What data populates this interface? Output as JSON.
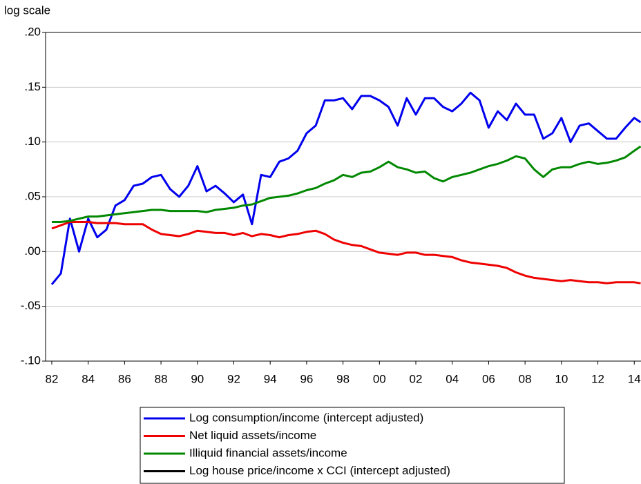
{
  "chart_data": {
    "type": "line",
    "y_axis_label": "log scale",
    "x": [
      1982.0,
      1982.5,
      1983.0,
      1983.5,
      1984.0,
      1984.5,
      1985.0,
      1985.5,
      1986.0,
      1986.5,
      1987.0,
      1987.5,
      1988.0,
      1988.5,
      1989.0,
      1989.5,
      1990.0,
      1990.5,
      1991.0,
      1991.5,
      1992.0,
      1992.5,
      1993.0,
      1993.5,
      1994.0,
      1994.5,
      1995.0,
      1995.5,
      1996.0,
      1996.5,
      1997.0,
      1997.5,
      1998.0,
      1998.5,
      1999.0,
      1999.5,
      2000.0,
      2000.5,
      2001.0,
      2001.5,
      2002.0,
      2002.5,
      2003.0,
      2003.5,
      2004.0,
      2004.5,
      2005.0,
      2005.5,
      2006.0,
      2006.5,
      2007.0,
      2007.5,
      2008.0,
      2008.5,
      2009.0,
      2009.5,
      2010.0,
      2010.5,
      2011.0,
      2011.5,
      2012.0,
      2012.5,
      2013.0,
      2013.5,
      2014.0,
      2014.35
    ],
    "series": [
      {
        "name": "Log consumption/income (intercept adjusted)",
        "color": "#0000ee",
        "values": [
          -0.03,
          -0.02,
          0.03,
          0.0,
          0.03,
          0.013,
          0.02,
          0.042,
          0.047,
          0.06,
          0.062,
          0.068,
          0.07,
          0.057,
          0.05,
          0.06,
          0.078,
          0.055,
          0.06,
          0.053,
          0.045,
          0.052,
          0.025,
          0.07,
          0.068,
          0.082,
          0.085,
          0.092,
          0.108,
          0.115,
          0.138,
          0.138,
          0.14,
          0.13,
          0.142,
          0.142,
          0.138,
          0.132,
          0.115,
          0.14,
          0.125,
          0.14,
          0.14,
          0.132,
          0.128,
          0.135,
          0.145,
          0.138,
          0.113,
          0.128,
          0.12,
          0.135,
          0.125,
          0.125,
          0.103,
          0.108,
          0.122,
          0.1,
          0.115,
          0.117,
          0.11,
          0.103,
          0.103,
          0.113,
          0.122,
          0.118
        ]
      },
      {
        "name": "Net liquid assets/income",
        "color": "#ee0000",
        "values": [
          0.021,
          0.024,
          0.027,
          0.027,
          0.027,
          0.026,
          0.026,
          0.026,
          0.025,
          0.025,
          0.025,
          0.02,
          0.016,
          0.015,
          0.014,
          0.016,
          0.019,
          0.018,
          0.017,
          0.017,
          0.015,
          0.017,
          0.014,
          0.016,
          0.015,
          0.013,
          0.015,
          0.016,
          0.018,
          0.019,
          0.016,
          0.011,
          0.008,
          0.006,
          0.005,
          0.002,
          -0.001,
          -0.002,
          -0.003,
          -0.001,
          -0.001,
          -0.003,
          -0.003,
          -0.004,
          -0.005,
          -0.008,
          -0.01,
          -0.011,
          -0.012,
          -0.013,
          -0.015,
          -0.019,
          -0.022,
          -0.024,
          -0.025,
          -0.026,
          -0.027,
          -0.026,
          -0.027,
          -0.028,
          -0.028,
          -0.029,
          -0.028,
          -0.028,
          -0.028,
          -0.029
        ]
      },
      {
        "name": "Illiquid financial assets/income",
        "color": "#008800",
        "values": [
          0.027,
          0.027,
          0.028,
          0.03,
          0.032,
          0.032,
          0.033,
          0.034,
          0.035,
          0.036,
          0.037,
          0.038,
          0.038,
          0.037,
          0.037,
          0.037,
          0.037,
          0.036,
          0.038,
          0.039,
          0.04,
          0.042,
          0.043,
          0.046,
          0.049,
          0.05,
          0.051,
          0.053,
          0.056,
          0.058,
          0.062,
          0.065,
          0.07,
          0.068,
          0.072,
          0.073,
          0.077,
          0.082,
          0.077,
          0.075,
          0.072,
          0.073,
          0.067,
          0.064,
          0.068,
          0.07,
          0.072,
          0.075,
          0.078,
          0.08,
          0.083,
          0.087,
          0.085,
          0.075,
          0.068,
          0.075,
          0.077,
          0.077,
          0.08,
          0.082,
          0.08,
          0.081,
          0.083,
          0.086,
          0.092,
          0.096
        ]
      },
      {
        "name": "Log house price/income x CCI (intercept adjusted)",
        "color": "#000000",
        "values": [
          null,
          null,
          null,
          null,
          null,
          null,
          null,
          null,
          null,
          null,
          null,
          null,
          null,
          null,
          null,
          null,
          null,
          null,
          null,
          null,
          null,
          null,
          null,
          null,
          null,
          null,
          null,
          null,
          null,
          null,
          null,
          null,
          null,
          null,
          null,
          null,
          null,
          null,
          null,
          null,
          null,
          null,
          null,
          null,
          null,
          null,
          null,
          null,
          null,
          null,
          null,
          null,
          null,
          null,
          null,
          null,
          null,
          null,
          null,
          null,
          null,
          null,
          null,
          null,
          null,
          null
        ]
      }
    ],
    "xlim": [
      1981.66,
      2014.37
    ],
    "xticks": [
      {
        "value": 1982,
        "label": "82"
      },
      {
        "value": 1984,
        "label": "84"
      },
      {
        "value": 1986,
        "label": "86"
      },
      {
        "value": 1988,
        "label": "88"
      },
      {
        "value": 1990,
        "label": "90"
      },
      {
        "value": 1992,
        "label": "92"
      },
      {
        "value": 1994,
        "label": "94"
      },
      {
        "value": 1996,
        "label": "96"
      },
      {
        "value": 1998,
        "label": "98"
      },
      {
        "value": 2000,
        "label": "00"
      },
      {
        "value": 2002,
        "label": "02"
      },
      {
        "value": 2004,
        "label": "04"
      },
      {
        "value": 2006,
        "label": "06"
      },
      {
        "value": 2008,
        "label": "08"
      },
      {
        "value": 2010,
        "label": "10"
      },
      {
        "value": 2012,
        "label": "12"
      },
      {
        "value": 2014,
        "label": "14"
      }
    ],
    "ylim": [
      -0.1,
      0.2
    ],
    "yticks": [
      {
        "value": -0.1,
        "label": "-.10"
      },
      {
        "value": -0.05,
        "label": "-.05"
      },
      {
        "value": 0,
        "label": ".00"
      },
      {
        "value": 0.05,
        "label": ".05"
      },
      {
        "value": 0.1,
        "label": ".10"
      },
      {
        "value": 0.15,
        "label": ".15"
      },
      {
        "value": 0.2,
        "label": ".20"
      }
    ],
    "grid": true
  }
}
